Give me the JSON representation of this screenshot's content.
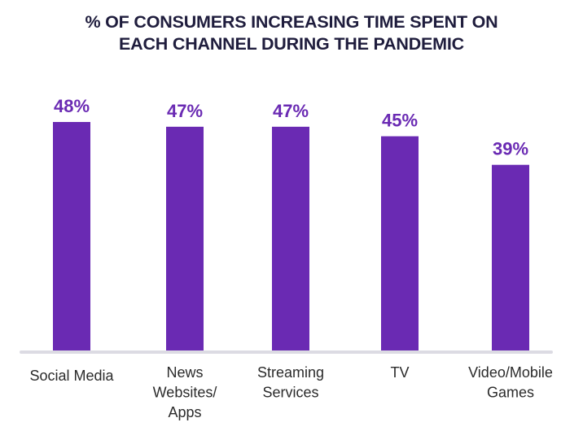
{
  "chart_data": {
    "type": "bar",
    "title": "% OF CONSUMERS INCREASING TIME SPENT ON EACH CHANNEL DURING THE PANDEMIC",
    "title_lines": [
      "% OF CONSUMERS INCREASING TIME SPENT ON",
      "EACH CHANNEL DURING THE PANDEMIC"
    ],
    "categories": [
      "Social Media",
      "News Websites/ Apps",
      "Streaming Services",
      "TV",
      "Video/Mobile Games"
    ],
    "category_label_lines": [
      [
        "Social Media"
      ],
      [
        "News",
        "Websites/",
        "Apps"
      ],
      [
        "Streaming",
        "Services"
      ],
      [
        "TV"
      ],
      [
        "Video/Mobile",
        "Games"
      ]
    ],
    "values": [
      48,
      47,
      47,
      45,
      39
    ],
    "value_labels": [
      "48%",
      "47%",
      "47%",
      "45%",
      "39%"
    ],
    "unit": "%",
    "xlabel": "",
    "ylabel": "",
    "ylim": [
      0,
      55
    ],
    "grid": false,
    "legend": "none",
    "colors": {
      "bar": "#6a2ab3",
      "value_label": "#6a2ab3",
      "title": "#1f1d3d",
      "axis": "#dcdbe3",
      "category_label": "#2b2b2b"
    }
  }
}
